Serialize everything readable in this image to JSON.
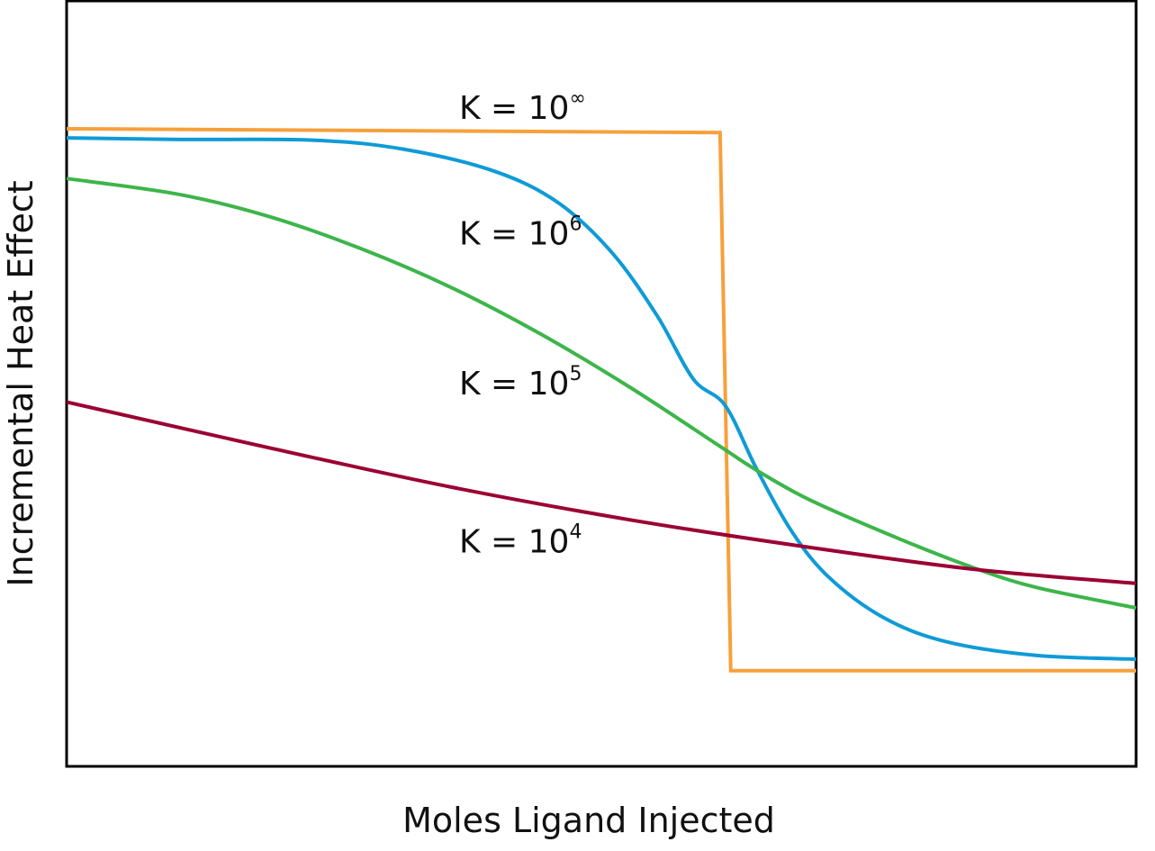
{
  "chart_data": {
    "type": "line",
    "title": "",
    "xlabel": "Moles Ligand Injected",
    "ylabel": "Incremental Heat Effect",
    "xlim": [
      0,
      100
    ],
    "ylim": [
      0,
      100
    ],
    "grid": false,
    "ticks": false,
    "series": [
      {
        "key": "inf",
        "color": "#f7a03c",
        "x": [
          0,
          61.1,
          62.1,
          100
        ],
        "y": [
          83.3,
          82.8,
          12.5,
          12.5
        ]
      },
      {
        "key": "e6",
        "color": "#0f9bd7",
        "x": [
          0,
          10.6,
          23.2,
          31.6,
          40.1,
          46.0,
          51.0,
          55.2,
          58.6,
          61.6,
          64.5,
          67.8,
          71.2,
          76.3,
          82.2,
          90.6,
          100
        ],
        "y": [
          82.1,
          81.9,
          81.8,
          80.6,
          77.7,
          73.6,
          67.1,
          58.9,
          50.6,
          47.1,
          38.9,
          30.7,
          24.8,
          19.5,
          16.3,
          14.5,
          14.0
        ]
      },
      {
        "key": "e5",
        "color": "#3db54a",
        "x": [
          0,
          10.6,
          19.0,
          27.4,
          35.9,
          44.3,
          52.7,
          61.1,
          64.5,
          69.5,
          77.9,
          84.7,
          90.6,
          100
        ],
        "y": [
          76.8,
          74.7,
          71.8,
          67.7,
          62.6,
          56.5,
          49.5,
          41.8,
          38.7,
          34.8,
          29.7,
          26.0,
          23.4,
          20.7
        ]
      },
      {
        "key": "e4",
        "color": "#9b0033",
        "x": [
          0,
          19.0,
          35.9,
          52.7,
          69.5,
          85.1,
          100
        ],
        "y": [
          47.6,
          41.6,
          36.5,
          32.2,
          28.6,
          25.7,
          23.9
        ]
      }
    ],
    "annotations": [
      {
        "base": "K = 10",
        "sup": "∞",
        "x": 36.7,
        "y": 86.1
      },
      {
        "base": "K = 10",
        "sup": "6",
        "x": 36.7,
        "y": 69.7
      },
      {
        "base": "K = 10",
        "sup": "5",
        "x": 36.7,
        "y": 50.1
      },
      {
        "base": "K = 10",
        "sup": "4",
        "x": 36.7,
        "y": 29.5
      }
    ]
  }
}
